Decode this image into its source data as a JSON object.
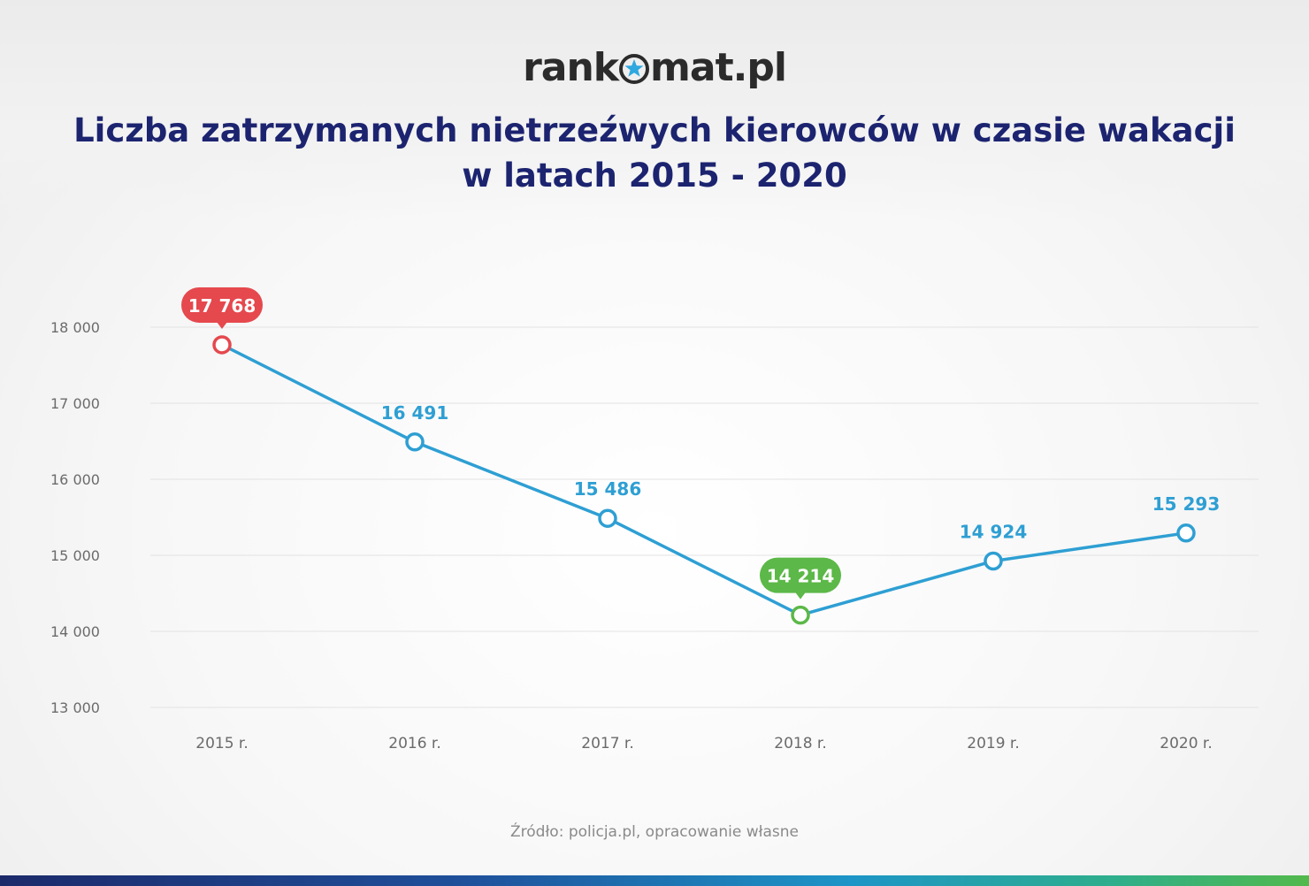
{
  "logo": {
    "left": "rank",
    "right": "mat.pl"
  },
  "title": {
    "line1": "Liczba zatrzymanych nietrzeźwych kierowców w czasie wakacji",
    "line2": "w latach 2015 - 2020"
  },
  "source": "Źródło: policja.pl, opracowanie własne",
  "colors": {
    "line": "#2e9fd3",
    "max_highlight": "#e5484d",
    "min_highlight": "#5cb848",
    "title": "#1c2470",
    "axis_text": "#6b6b6b",
    "grid": "#e2e2e2"
  },
  "chart_data": {
    "type": "line",
    "categories": [
      "2015 r.",
      "2016 r.",
      "2017 r.",
      "2018 r.",
      "2019 r.",
      "2020 r."
    ],
    "values": [
      17768,
      16491,
      15486,
      14214,
      14924,
      15293
    ],
    "value_labels": [
      "17 768",
      "16 491",
      "15 486",
      "14 214",
      "14 924",
      "15 293"
    ],
    "highlight_max_index": 0,
    "highlight_min_index": 3,
    "ylim": [
      13000,
      18000
    ],
    "yticks": [
      13000,
      14000,
      15000,
      16000,
      17000,
      18000
    ],
    "ytick_labels": [
      "13 000",
      "14 000",
      "15 000",
      "16 000",
      "17 000",
      "18 000"
    ],
    "grid": true,
    "legend": false
  }
}
